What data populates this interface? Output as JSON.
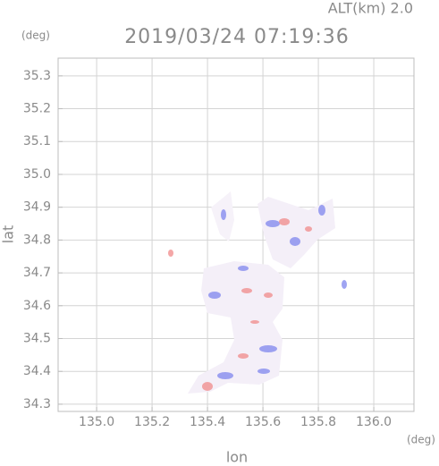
{
  "chart_data": {
    "type": "map",
    "title": "2019/03/24 07:19:36",
    "subtitle": "ALT(km) 2.0",
    "y_label": "lat",
    "x_label": "lon",
    "y_unit": "(deg)",
    "x_unit": "(deg)",
    "xlim": [
      134.861,
      136.145
    ],
    "ylim": [
      34.278,
      35.354
    ],
    "xticks": [
      {
        "value": 135.0,
        "label": "135.0"
      },
      135.2,
      135.4,
      135.6,
      135.8,
      {
        "value": 136.0,
        "label": "136.0"
      }
    ],
    "yticks": [
      34.3,
      34.4,
      34.5,
      34.6,
      34.7,
      34.8,
      34.9,
      {
        "value": 35.0,
        "label": "35.0"
      },
      35.1,
      35.2,
      35.3
    ],
    "grid": true
  }
}
